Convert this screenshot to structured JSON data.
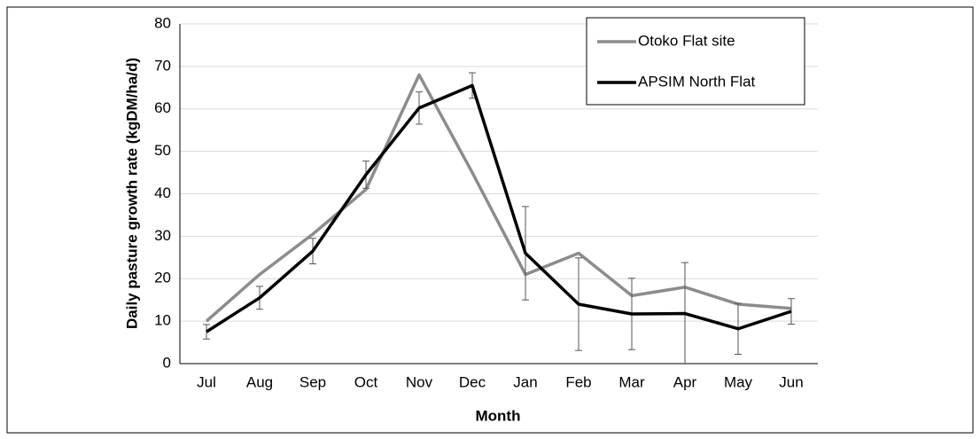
{
  "chart_data": {
    "type": "line",
    "xlabel": "Month",
    "ylabel": "Daily pasture growth rate (kgDM/ha/d)",
    "categories": [
      "Jul",
      "Aug",
      "Sep",
      "Oct",
      "Nov",
      "Dec",
      "Jan",
      "Feb",
      "Mar",
      "Apr",
      "May",
      "Jun"
    ],
    "series": [
      {
        "name": "Otoko Flat site",
        "color": "#8c8c8c",
        "values": [
          10,
          21,
          30.5,
          41,
          68,
          45,
          21,
          26,
          16,
          18,
          14,
          13
        ]
      },
      {
        "name": "APSIM North Flat",
        "color": "#000000",
        "values": [
          7.5,
          15.5,
          26.5,
          44.5,
          60.2,
          65.5,
          26,
          14,
          11.7,
          11.8,
          8.2,
          12.3
        ],
        "errors": [
          1.7,
          2.7,
          3,
          3.2,
          3.8,
          3,
          11,
          10.9,
          8.4,
          12,
          6,
          3
        ]
      }
    ],
    "ylim": [
      0,
      80
    ],
    "yticks": [
      0,
      10,
      20,
      30,
      40,
      50,
      60,
      70,
      80
    ],
    "grid": true,
    "legend": "upper right"
  }
}
